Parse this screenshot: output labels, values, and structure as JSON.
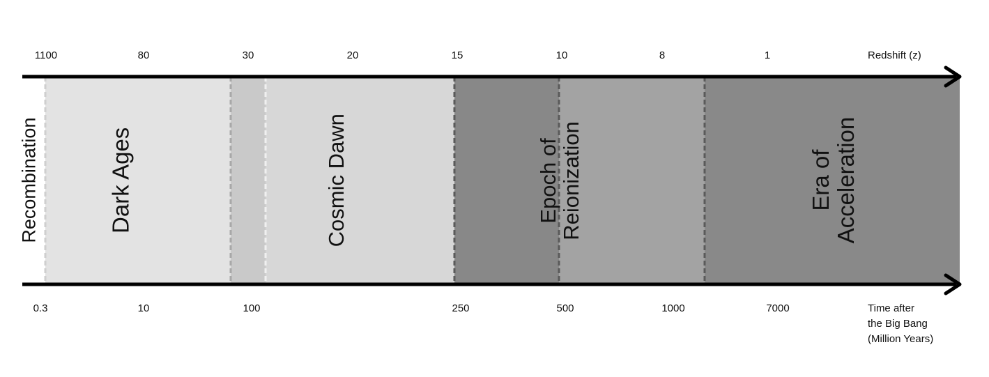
{
  "redshift_axis": {
    "title": "Redshift (z)",
    "ticks": [
      "1100",
      "80",
      "30",
      "20",
      "15",
      "10",
      "8",
      "1"
    ]
  },
  "time_axis": {
    "title_lines": [
      "Time after",
      "the Big Bang",
      "(Million Years)"
    ],
    "ticks": [
      "0.3",
      "10",
      "100",
      "250",
      "500",
      "1000",
      "7000"
    ]
  },
  "eras": {
    "recombination": "Recombination",
    "dark_ages": "Dark Ages",
    "cosmic_dawn": "Cosmic Dawn",
    "reionization_line1": "Epoch of",
    "reionization_line2": "Reionization",
    "acceleration_line1": "Era of",
    "acceleration_line2": "Acceleration"
  },
  "colors": {
    "axis": "#000000",
    "dark_ages_band": "#e3e3e3",
    "transition_band": "#c9c9c9",
    "cosmic_dawn_band": "#d7d7d7",
    "reionization_early_band": "#888888",
    "reionization_late_band": "#a3a3a3",
    "acceleration_band": "#898989"
  }
}
